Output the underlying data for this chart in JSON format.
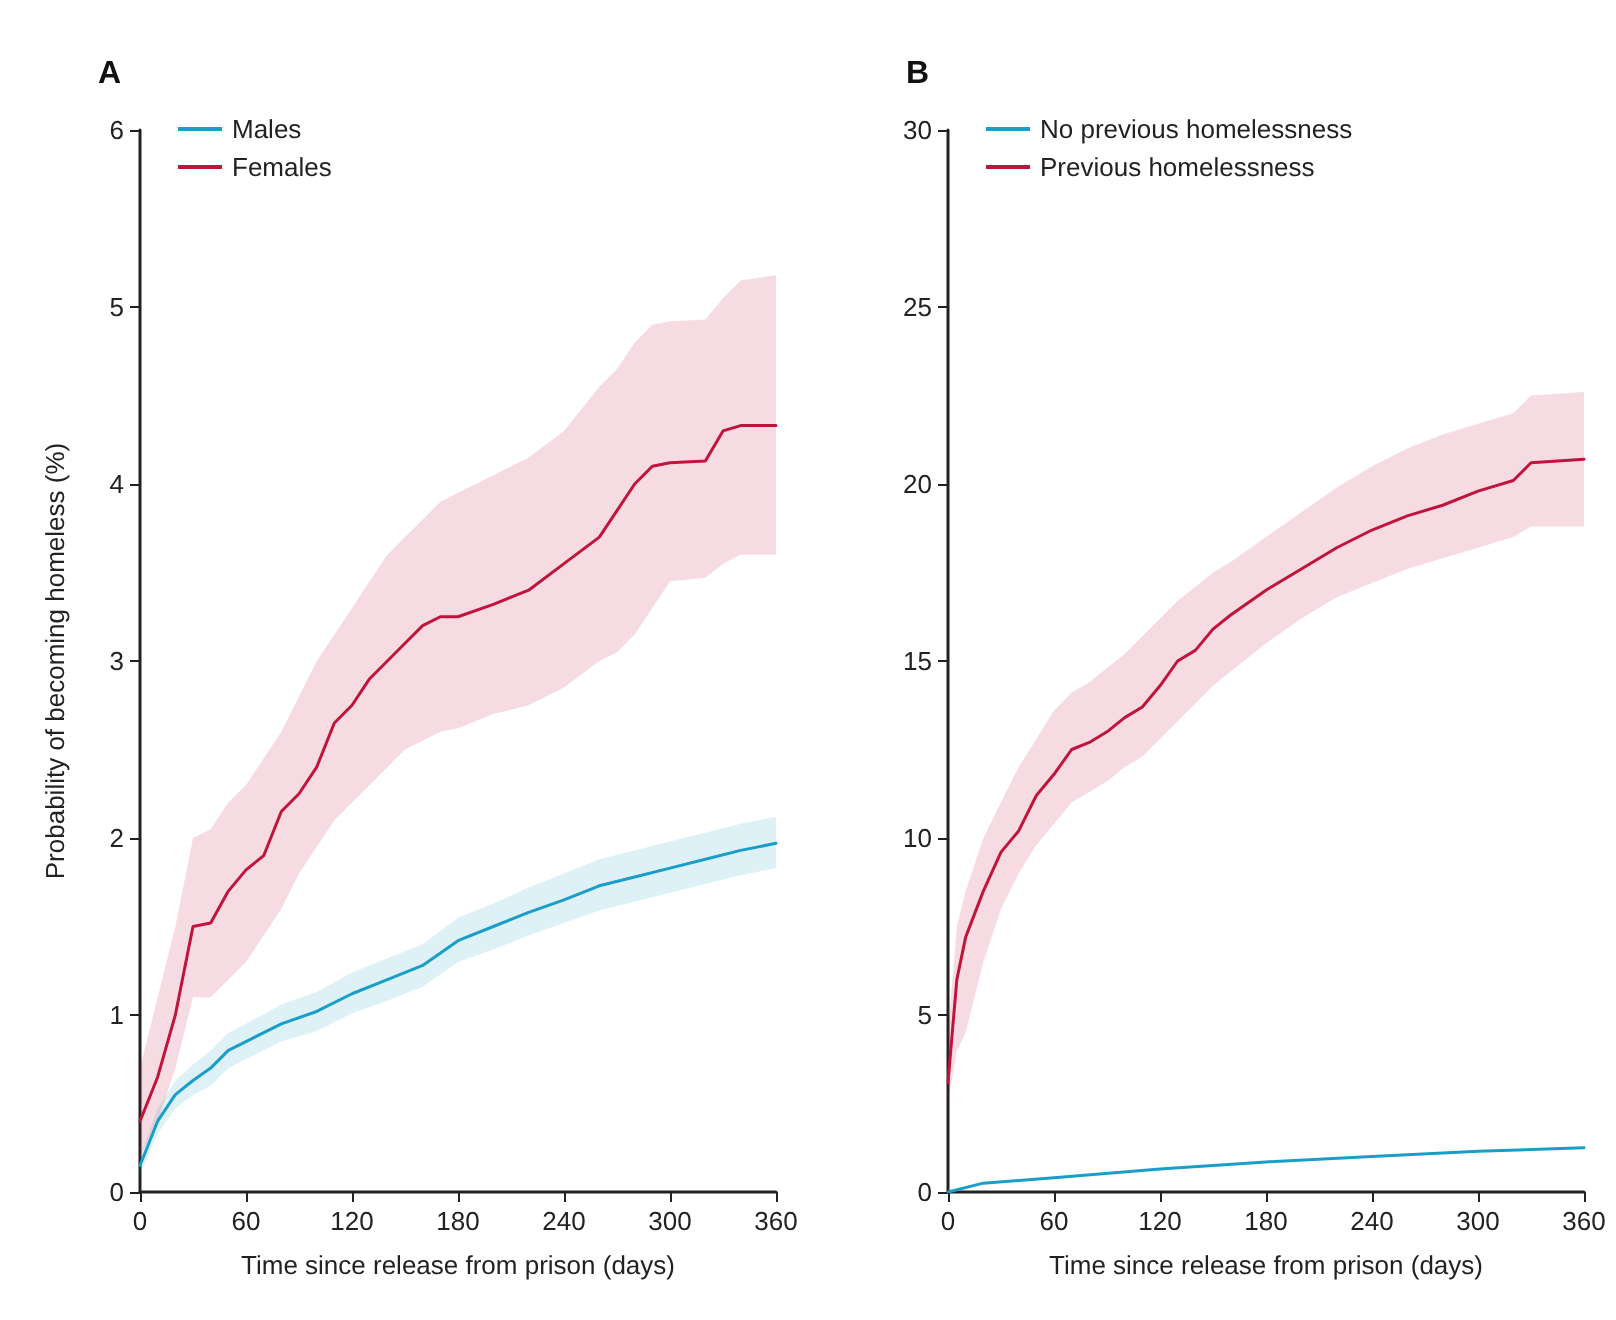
{
  "chart_data": [
    {
      "type": "line",
      "title": "A",
      "xlabel": "Time since release from prison (days)",
      "ylabel": "Probability of becoming homeless (%)",
      "xlim": [
        0,
        360
      ],
      "xticks": [
        0,
        60,
        120,
        180,
        240,
        300,
        360
      ],
      "ylim": [
        0,
        6
      ],
      "yticks": [
        0,
        1,
        2,
        3,
        4,
        5,
        6
      ],
      "grid": false,
      "legend": "top left",
      "series": [
        {
          "name": "Males",
          "color": "#1a9ec9",
          "x": [
            0,
            10,
            20,
            30,
            40,
            50,
            60,
            80,
            100,
            120,
            140,
            160,
            180,
            200,
            220,
            240,
            260,
            280,
            300,
            320,
            340,
            360
          ],
          "values": [
            0.15,
            0.4,
            0.55,
            0.63,
            0.7,
            0.8,
            0.85,
            0.95,
            1.02,
            1.12,
            1.2,
            1.28,
            1.42,
            1.5,
            1.58,
            1.65,
            1.73,
            1.78,
            1.83,
            1.88,
            1.93,
            1.97
          ],
          "lower": [
            0.1,
            0.33,
            0.47,
            0.55,
            0.6,
            0.7,
            0.75,
            0.85,
            0.91,
            1.01,
            1.08,
            1.16,
            1.3,
            1.37,
            1.45,
            1.52,
            1.59,
            1.64,
            1.69,
            1.74,
            1.79,
            1.83
          ],
          "upper": [
            0.2,
            0.47,
            0.63,
            0.72,
            0.8,
            0.9,
            0.95,
            1.06,
            1.13,
            1.24,
            1.32,
            1.4,
            1.55,
            1.63,
            1.72,
            1.8,
            1.88,
            1.93,
            1.98,
            2.03,
            2.08,
            2.12
          ]
        },
        {
          "name": "Females",
          "color": "#c0143c",
          "x": [
            0,
            10,
            20,
            30,
            40,
            50,
            60,
            70,
            80,
            90,
            100,
            110,
            120,
            130,
            140,
            150,
            160,
            170,
            180,
            200,
            220,
            240,
            260,
            270,
            280,
            290,
            300,
            320,
            330,
            340,
            360
          ],
          "values": [
            0.4,
            0.65,
            1.0,
            1.5,
            1.52,
            1.7,
            1.82,
            1.9,
            2.15,
            2.25,
            2.4,
            2.65,
            2.75,
            2.9,
            3.0,
            3.1,
            3.2,
            3.25,
            3.25,
            3.32,
            3.4,
            3.55,
            3.7,
            3.85,
            4.0,
            4.1,
            4.12,
            4.13,
            4.3,
            4.33,
            4.33
          ],
          "lower": [
            0.2,
            0.4,
            0.7,
            1.1,
            1.1,
            1.2,
            1.3,
            1.45,
            1.6,
            1.8,
            1.95,
            2.1,
            2.2,
            2.3,
            2.4,
            2.5,
            2.55,
            2.6,
            2.62,
            2.7,
            2.75,
            2.85,
            3.0,
            3.05,
            3.15,
            3.3,
            3.45,
            3.47,
            3.55,
            3.6,
            3.6
          ],
          "upper": [
            0.7,
            1.1,
            1.5,
            2.0,
            2.05,
            2.2,
            2.3,
            2.45,
            2.6,
            2.8,
            3.0,
            3.15,
            3.3,
            3.45,
            3.6,
            3.7,
            3.8,
            3.9,
            3.95,
            4.05,
            4.15,
            4.3,
            4.55,
            4.65,
            4.8,
            4.9,
            4.92,
            4.93,
            5.05,
            5.15,
            5.18
          ]
        }
      ]
    },
    {
      "type": "line",
      "title": "B",
      "xlabel": "Time since release from prison (days)",
      "xlim": [
        0,
        360
      ],
      "xticks": [
        0,
        60,
        120,
        180,
        240,
        300,
        360
      ],
      "ylim": [
        0,
        30
      ],
      "yticks": [
        0,
        5,
        10,
        15,
        20,
        25,
        30
      ],
      "grid": false,
      "legend": "top left",
      "series": [
        {
          "name": "No previous homelessness",
          "color": "#1a9ec9",
          "x": [
            0,
            20,
            60,
            120,
            180,
            240,
            300,
            360
          ],
          "values": [
            0,
            0.25,
            0.4,
            0.65,
            0.85,
            1.0,
            1.15,
            1.25
          ]
        },
        {
          "name": "Previous homelessness",
          "color": "#c0143c",
          "x": [
            0,
            5,
            10,
            20,
            30,
            40,
            50,
            60,
            70,
            80,
            90,
            100,
            110,
            120,
            130,
            140,
            150,
            160,
            180,
            200,
            220,
            240,
            260,
            280,
            300,
            320,
            330,
            360
          ],
          "values": [
            3.1,
            6,
            7.2,
            8.5,
            9.6,
            10.2,
            11.2,
            11.8,
            12.5,
            12.7,
            13.0,
            13.4,
            13.7,
            14.3,
            15.0,
            15.3,
            15.9,
            16.3,
            17.0,
            17.6,
            18.2,
            18.7,
            19.1,
            19.4,
            19.8,
            20.1,
            20.6,
            20.7
          ],
          "lower": [
            2.5,
            4,
            4.5,
            6.5,
            8,
            9,
            9.8,
            10.4,
            11,
            11.3,
            11.6,
            12,
            12.3,
            12.8,
            13.3,
            13.8,
            14.3,
            14.7,
            15.5,
            16.2,
            16.8,
            17.2,
            17.6,
            17.9,
            18.2,
            18.5,
            18.8,
            18.8
          ],
          "upper": [
            4.5,
            7.5,
            8.5,
            10,
            11,
            12,
            12.8,
            13.6,
            14.1,
            14.4,
            14.8,
            15.2,
            15.7,
            16.2,
            16.7,
            17.1,
            17.5,
            17.8,
            18.5,
            19.2,
            19.9,
            20.5,
            21,
            21.4,
            21.7,
            22,
            22.5,
            22.6
          ]
        }
      ]
    }
  ]
}
